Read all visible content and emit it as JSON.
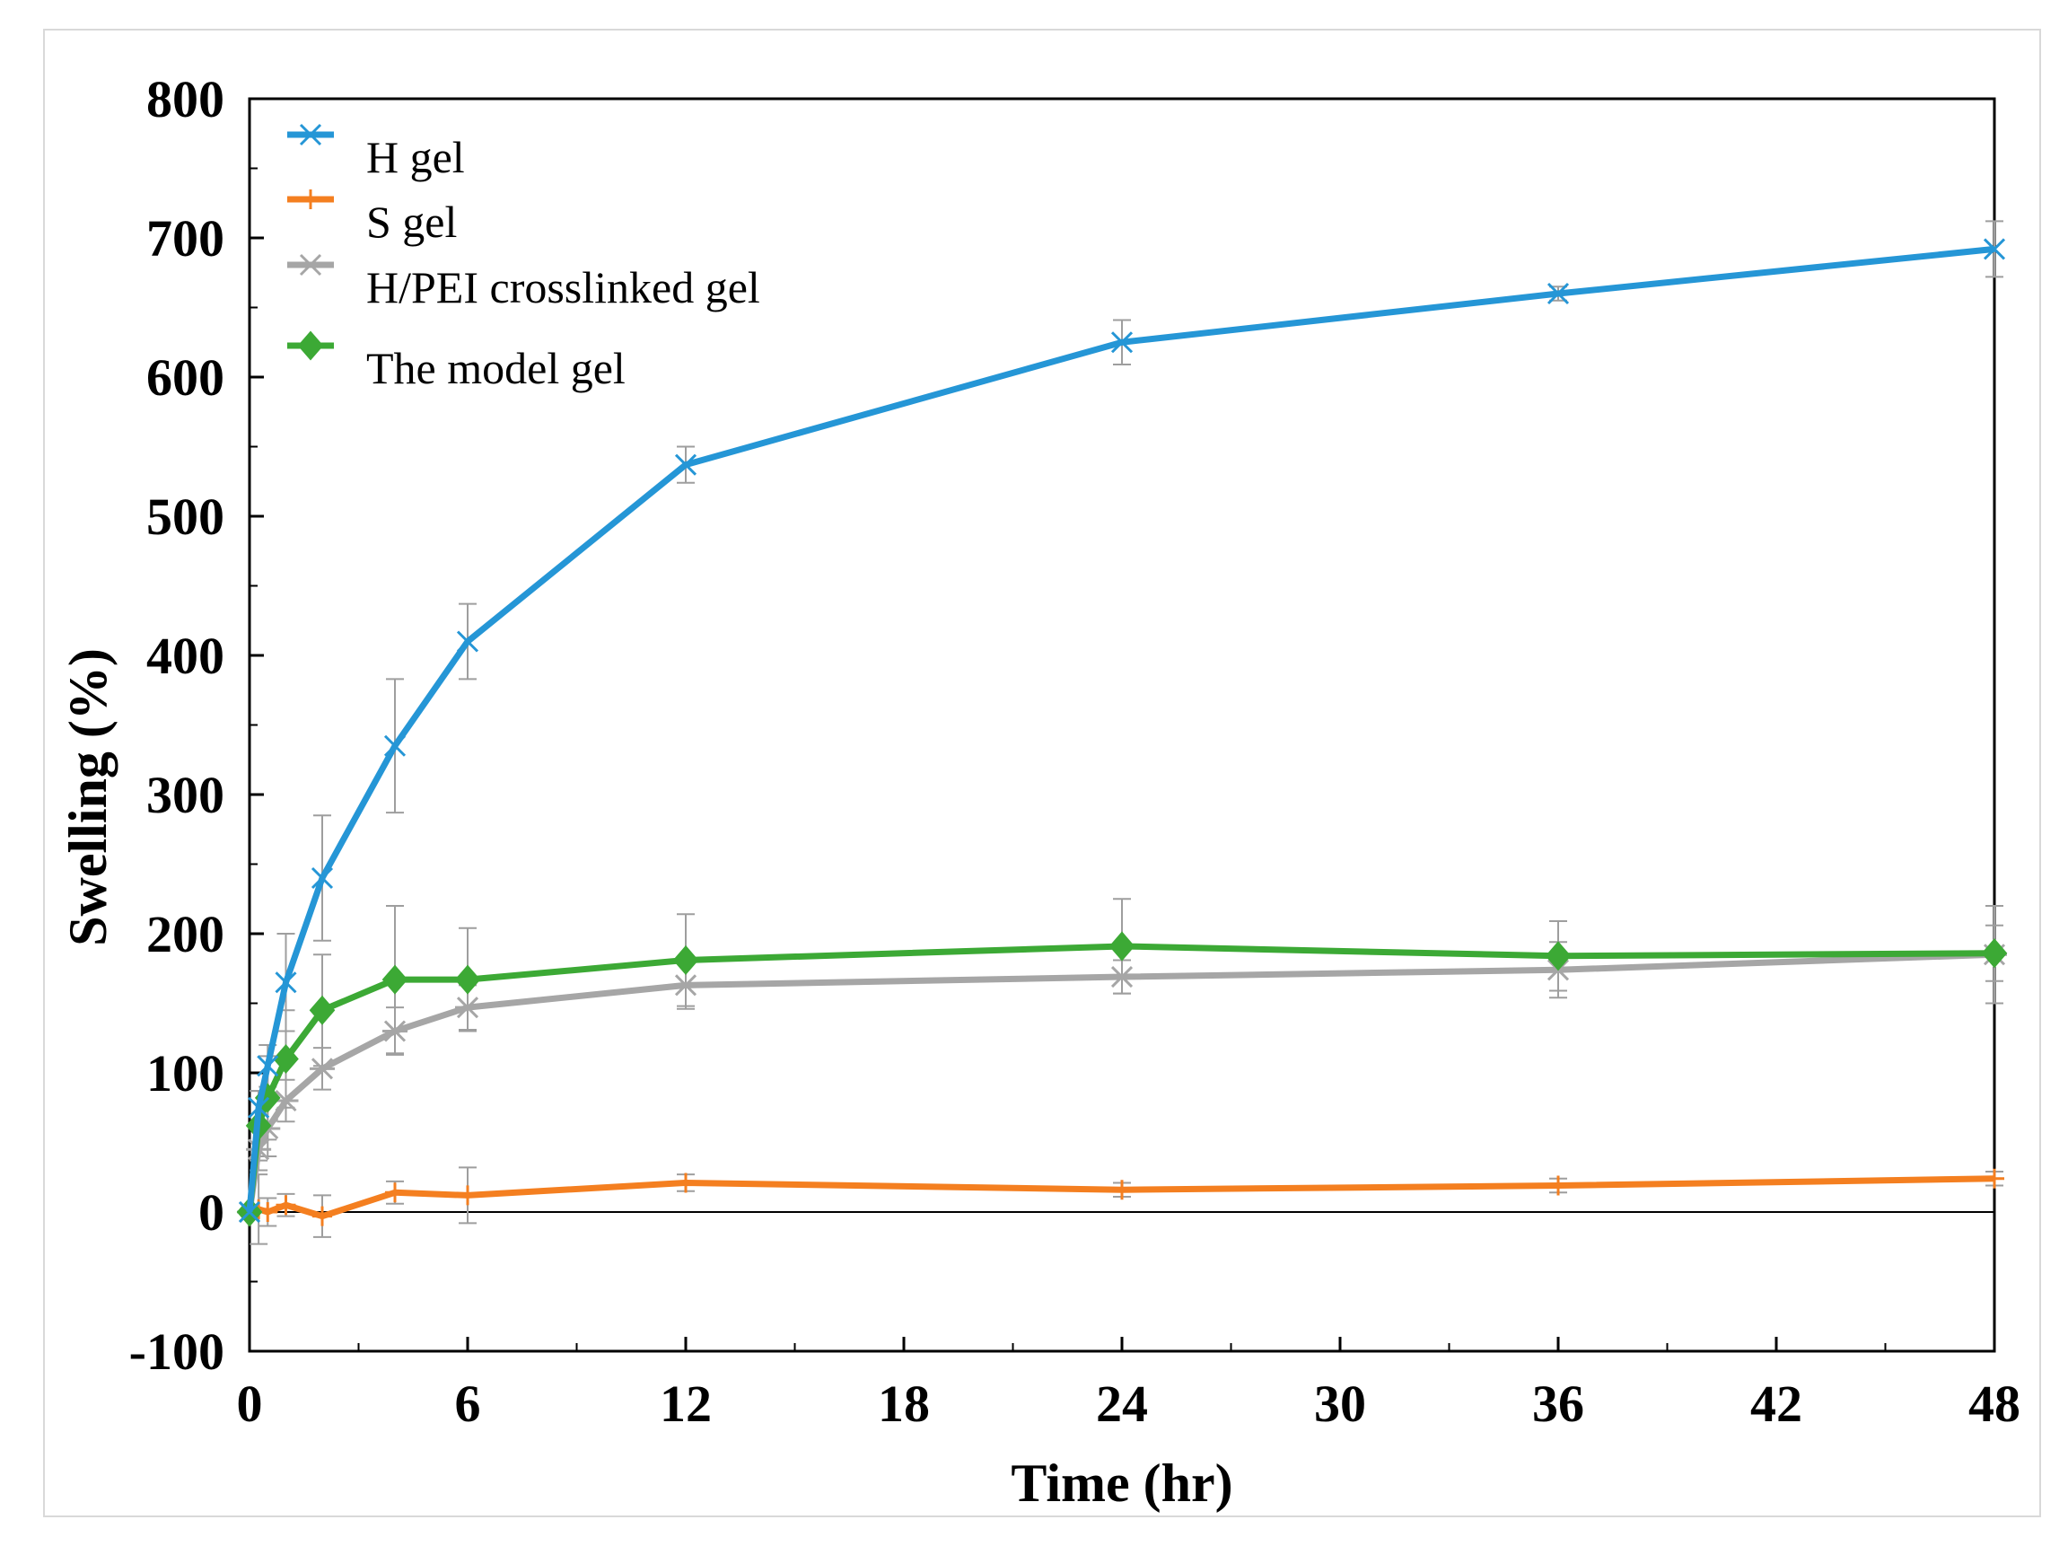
{
  "chart_data": {
    "type": "line",
    "xlabel": "Time (hr)",
    "ylabel": "Swelling (%)",
    "xlim": [
      0,
      48
    ],
    "ylim": [
      -100,
      800
    ],
    "xticks": [
      0,
      6,
      12,
      18,
      24,
      30,
      36,
      42,
      48
    ],
    "yticks": [
      -100,
      0,
      100,
      200,
      300,
      400,
      500,
      600,
      700,
      800
    ],
    "x": [
      0,
      0.25,
      0.5,
      1,
      2,
      4,
      6,
      12,
      24,
      36,
      48
    ],
    "series": [
      {
        "name": "H gel",
        "color": "#2596d6",
        "marker": "x",
        "values": [
          0,
          75,
          105,
          165,
          240,
          335,
          410,
          537,
          625,
          660,
          692
        ],
        "errors": [
          0,
          12,
          15,
          35,
          45,
          48,
          27,
          13,
          16,
          5,
          20
        ]
      },
      {
        "name": "S gel",
        "color": "#f47f20",
        "marker": "plus",
        "values": [
          0,
          2,
          0,
          5,
          -3,
          14,
          12,
          21,
          16,
          19,
          24
        ],
        "errors": [
          0,
          25,
          10,
          8,
          15,
          8,
          20,
          6,
          5,
          5,
          5
        ]
      },
      {
        "name": "H/PEI crosslinked gel",
        "color": "#a6a6a6",
        "marker": "asterisk",
        "values": [
          0,
          45,
          60,
          80,
          103,
          130,
          147,
          163,
          169,
          174,
          185
        ],
        "errors": [
          0,
          15,
          20,
          15,
          15,
          17,
          16,
          17,
          12,
          20,
          35
        ]
      },
      {
        "name": "The model gel",
        "color": "#3ca935",
        "marker": "diamond",
        "values": [
          0,
          62,
          82,
          110,
          145,
          167,
          167,
          181,
          191,
          184,
          186
        ],
        "errors": [
          0,
          25,
          30,
          35,
          40,
          53,
          37,
          33,
          34,
          25,
          20
        ]
      }
    ],
    "legend_position": "top-left"
  }
}
